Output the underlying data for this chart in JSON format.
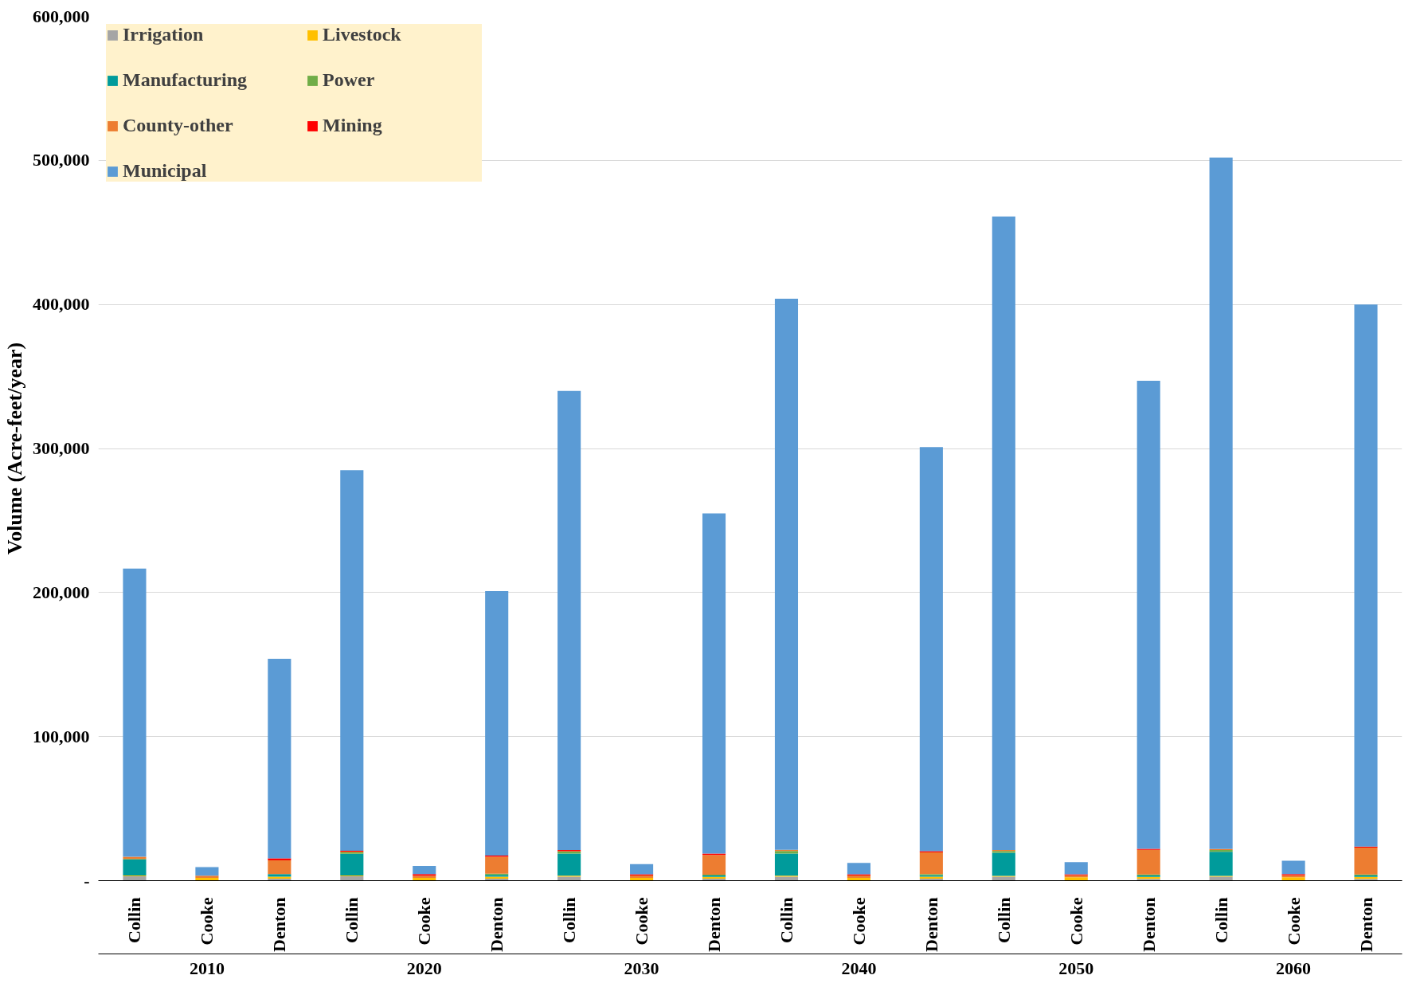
{
  "chart_data": {
    "type": "bar",
    "stacked": true,
    "ylabel": "Volume (Acre-feet/year)",
    "categories": [
      "Collin",
      "Cooke",
      "Denton",
      "Collin",
      "Cooke",
      "Denton",
      "Collin",
      "Cooke",
      "Denton",
      "Collin",
      "Cooke",
      "Denton",
      "Collin",
      "Cooke",
      "Denton",
      "Collin",
      "Cooke",
      "Denton"
    ],
    "annotations": [
      "2010",
      "2020",
      "2030",
      "2040",
      "2050",
      "2060"
    ],
    "ylim": [
      0,
      600000
    ],
    "yticks": [
      {
        "value": 0,
        "label": "-"
      },
      {
        "value": 100000,
        "label": "100,000"
      },
      {
        "value": 200000,
        "label": "200,000"
      },
      {
        "value": 300000,
        "label": "300,000"
      },
      {
        "value": 400000,
        "label": "400,000"
      },
      {
        "value": 500000,
        "label": "500,000"
      },
      {
        "value": 600000,
        "label": "600,000"
      }
    ],
    "grid": "y",
    "legend": "top left",
    "series": [
      {
        "name": "Irrigation",
        "color": "#a5a5a5",
        "values": [
          3000,
          0,
          1400,
          3000,
          0,
          1400,
          2800,
          0,
          1400,
          2800,
          0,
          1400,
          2700,
          0,
          1300,
          2700,
          0,
          1300
        ]
      },
      {
        "name": "Livestock",
        "color": "#ffc000",
        "values": [
          600,
          2000,
          1400,
          600,
          2000,
          1400,
          600,
          2000,
          1200,
          600,
          2000,
          1400,
          600,
          2300,
          1300,
          600,
          2300,
          1300
        ]
      },
      {
        "name": "Manufacturing",
        "color": "#009b9b",
        "values": [
          11000,
          0,
          1800,
          15000,
          0,
          1200,
          15400,
          0,
          1000,
          15400,
          0,
          1000,
          16000,
          0,
          1000,
          16700,
          0,
          1000
        ]
      },
      {
        "name": "Power",
        "color": "#70ad47",
        "values": [
          500,
          0,
          0,
          1000,
          0,
          800,
          1400,
          0,
          600,
          1800,
          0,
          800,
          1300,
          0,
          700,
          1300,
          0,
          700
        ]
      },
      {
        "name": "County-other",
        "color": "#ed7d31",
        "values": [
          1500,
          1400,
          9500,
          600,
          1500,
          11800,
          300,
          1600,
          13600,
          800,
          1600,
          15000,
          700,
          1500,
          17100,
          700,
          1500,
          18600
        ]
      },
      {
        "name": "Mining",
        "color": "#ff0000",
        "values": [
          0,
          0,
          1400,
          500,
          1000,
          800,
          800,
          800,
          1000,
          0,
          800,
          800,
          0,
          600,
          700,
          0,
          700,
          700
        ]
      },
      {
        "name": "Municipal",
        "color": "#5b9bd5",
        "values": [
          200000,
          6000,
          138500,
          264300,
          5700,
          183600,
          318700,
          7100,
          236200,
          382600,
          7900,
          280600,
          439700,
          8500,
          324900,
          480000,
          9300,
          376400
        ]
      }
    ]
  }
}
